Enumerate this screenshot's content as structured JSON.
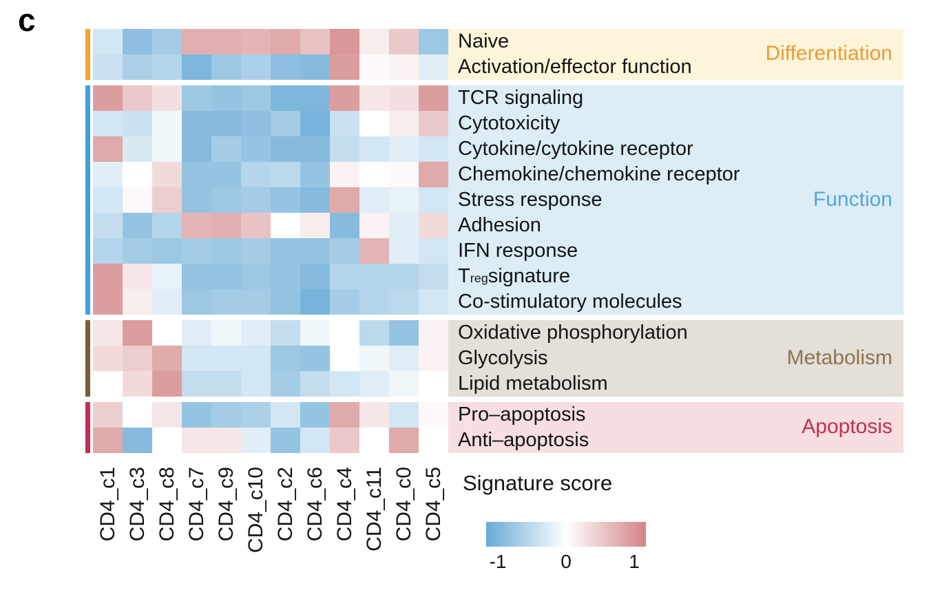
{
  "panel_label": "c",
  "legend": {
    "title": "Signature score",
    "ticks": [
      "-1",
      "0",
      "1"
    ]
  },
  "chart_data": {
    "type": "heatmap",
    "value_range": [
      -1,
      1
    ],
    "colors": {
      "negative": "#68aad6",
      "zero": "#ffffff",
      "positive": "#d38486"
    },
    "legend_title": "Signature score",
    "columns": [
      "CD4_c1",
      "CD4_c3",
      "CD4_c8",
      "CD4_c7",
      "CD4_c9",
      "CD4_c10",
      "CD4_c2",
      "CD4_c6",
      "CD4_c4",
      "CD4_c11",
      "CD4_c0",
      "CD4_c5"
    ],
    "groups": [
      {
        "name": "Differentiation",
        "text_color": "#f09a36",
        "bar_color": "#f5a32c",
        "bg_color": "#fcf5da",
        "rows": [
          {
            "label": "Naive",
            "values": [
              -0.3,
              -0.75,
              -0.6,
              0.65,
              0.65,
              0.6,
              0.7,
              0.5,
              0.85,
              0.15,
              0.45,
              -0.65
            ]
          },
          {
            "label": "Activation/effector function",
            "values": [
              -0.35,
              -0.55,
              -0.5,
              -0.85,
              -0.65,
              -0.55,
              -0.75,
              -0.8,
              0.8,
              0.05,
              0.1,
              -0.2
            ]
          }
        ]
      },
      {
        "name": "Function",
        "text_color": "#54a7db",
        "bar_color": "#3f9fd8",
        "bg_color": "#dcedf6",
        "rows": [
          {
            "label": "TCR signaling",
            "values": [
              0.8,
              0.45,
              0.25,
              -0.65,
              -0.7,
              -0.65,
              -0.85,
              -0.85,
              0.8,
              0.2,
              0.25,
              0.8
            ]
          },
          {
            "label": "Cytotoxicity",
            "values": [
              -0.3,
              -0.35,
              -0.1,
              -0.8,
              -0.8,
              -0.75,
              -0.6,
              -0.9,
              -0.35,
              0,
              0.15,
              0.45
            ]
          },
          {
            "label": "Cytokine/cytokine receptor",
            "values": [
              0.7,
              -0.25,
              -0.1,
              -0.8,
              -0.6,
              -0.7,
              -0.8,
              -0.8,
              -0.4,
              -0.3,
              -0.2,
              -0.3
            ]
          },
          {
            "label": "Chemokine/chemokine receptor",
            "values": [
              -0.2,
              0,
              0.3,
              -0.7,
              -0.7,
              -0.5,
              -0.45,
              -0.7,
              0.1,
              0,
              0.05,
              0.7
            ]
          },
          {
            "label": "Stress response",
            "values": [
              -0.3,
              0.05,
              0.4,
              -0.7,
              -0.65,
              -0.6,
              -0.7,
              -0.8,
              0.7,
              -0.2,
              -0.15,
              -0.3
            ]
          },
          {
            "label": "Adhesion",
            "values": [
              -0.4,
              -0.7,
              -0.5,
              0.6,
              0.65,
              0.5,
              0,
              0.15,
              -0.8,
              0.1,
              -0.2,
              0.3
            ]
          },
          {
            "label": "IFN response",
            "values": [
              -0.5,
              -0.6,
              -0.65,
              -0.6,
              -0.65,
              -0.6,
              -0.7,
              -0.7,
              -0.6,
              0.6,
              -0.2,
              -0.3
            ]
          },
          {
            "label": "Treg signature",
            "label_parts": {
              "pre": "T",
              "sub": "reg",
              "post": " signature"
            },
            "values": [
              0.8,
              0.2,
              -0.15,
              -0.7,
              -0.7,
              -0.65,
              -0.7,
              -0.8,
              -0.5,
              -0.5,
              -0.5,
              -0.4
            ]
          },
          {
            "label": "Co-stimulatory molecules",
            "values": [
              0.8,
              0.15,
              -0.2,
              -0.65,
              -0.6,
              -0.6,
              -0.7,
              -0.9,
              -0.6,
              -0.5,
              -0.45,
              -0.3
            ]
          }
        ]
      },
      {
        "name": "Metabolism",
        "text_color": "#8d7350",
        "bar_color": "#7d5b36",
        "bg_color": "#e4dfd7",
        "rows": [
          {
            "label": "Oxidative phosphorylation",
            "values": [
              0.2,
              0.8,
              0,
              -0.2,
              -0.1,
              -0.2,
              -0.4,
              -0.1,
              0,
              -0.45,
              -0.7,
              0.1
            ]
          },
          {
            "label": "Glycolysis",
            "values": [
              0.3,
              0.4,
              0.7,
              -0.3,
              -0.3,
              -0.3,
              -0.65,
              -0.7,
              0,
              -0.1,
              -0.2,
              0.1
            ]
          },
          {
            "label": "Lipid metabolism",
            "values": [
              0,
              0.3,
              0.8,
              -0.4,
              -0.4,
              -0.3,
              -0.6,
              -0.4,
              -0.3,
              -0.2,
              -0.1,
              0
            ]
          }
        ]
      },
      {
        "name": "Apoptosis",
        "text_color": "#c22f4c",
        "bar_color": "#c52a50",
        "bg_color": "#f6dee1",
        "rows": [
          {
            "label": "Pro–apoptosis",
            "values": [
              0.4,
              0,
              0.2,
              -0.7,
              -0.6,
              -0.55,
              -0.3,
              -0.7,
              0.7,
              0.2,
              -0.3,
              0.05
            ]
          },
          {
            "label": "Anti–apoptosis",
            "values": [
              0.7,
              -0.8,
              0,
              0.2,
              0.2,
              -0.2,
              -0.7,
              -0.3,
              0.45,
              0,
              0.7,
              0
            ]
          }
        ]
      }
    ]
  }
}
